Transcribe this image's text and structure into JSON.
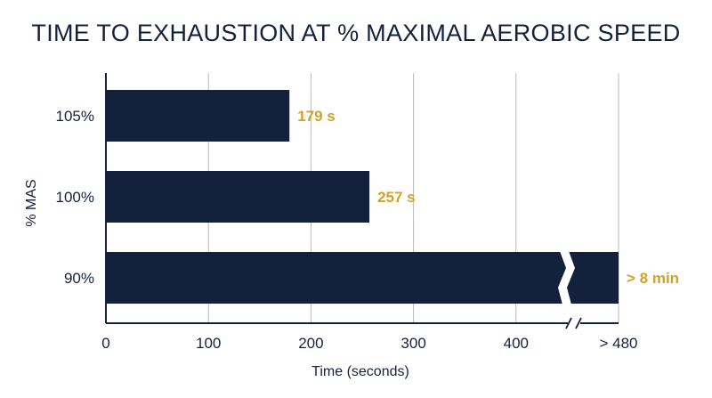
{
  "colors": {
    "bar": "#14213d",
    "label": "#d4a028",
    "grid": "#b8b8b8",
    "axis": "#14213d",
    "text": "#14213d"
  },
  "chart_data": {
    "type": "bar",
    "orientation": "horizontal",
    "title": "TIME TO EXHAUSTION AT % MAXIMAL AEROBIC SPEED",
    "xlabel": "Time (seconds)",
    "ylabel": "% MAS",
    "categories": [
      "105%",
      "100%",
      "90%"
    ],
    "values": [
      179,
      257,
      480
    ],
    "data_labels": [
      "179 s",
      "257 s",
      "> 8 min"
    ],
    "xlim": [
      0,
      480
    ],
    "xticks": [
      0,
      100,
      200,
      300,
      400,
      480
    ],
    "xtick_labels": [
      "0",
      "100",
      "200",
      "300",
      "400",
      "> 480"
    ],
    "axis_break": "between 400 and 480",
    "grid": "vertical",
    "legend": "none"
  }
}
